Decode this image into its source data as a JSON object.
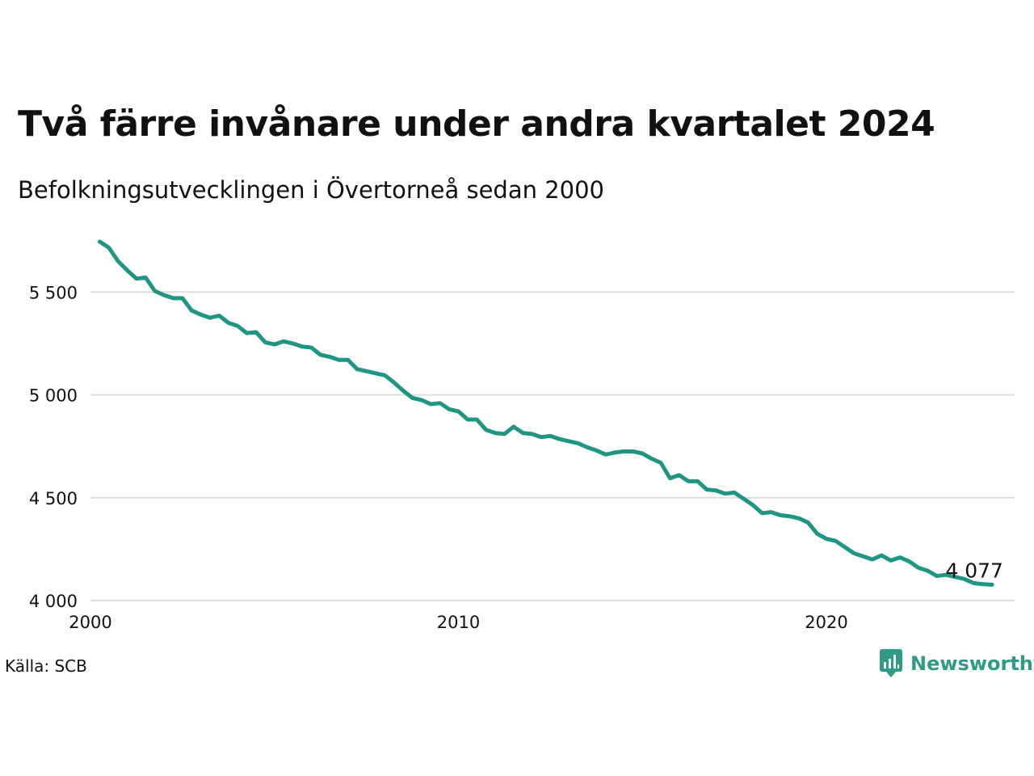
{
  "title": "Två färre invånare under andra kvartalet 2024",
  "subtitle": "Befolkningsutvecklingen i Övertorneå sedan 2000",
  "source": "Källa: SCB",
  "brand": {
    "name": "Newsworthy",
    "icon": "newsworthy-logo-icon",
    "color": "#2f9a88"
  },
  "chart_data": {
    "type": "line",
    "title": "Två färre invånare under andra kvartalet 2024",
    "subtitle": "Befolkningsutvecklingen i Övertorneå sedan 2000",
    "xlabel": "",
    "ylabel": "",
    "xlim": [
      2000,
      2025
    ],
    "ylim": [
      4000,
      5750
    ],
    "grid": true,
    "line_color": "#1f9583",
    "x_ticks": [
      {
        "value": 2000,
        "label": "2000"
      },
      {
        "value": 2010,
        "label": "2010"
      },
      {
        "value": 2020,
        "label": "2020"
      }
    ],
    "y_ticks": [
      {
        "value": 4000,
        "label": "4 000"
      },
      {
        "value": 4500,
        "label": "4 500"
      },
      {
        "value": 5000,
        "label": "5 000"
      },
      {
        "value": 5500,
        "label": "5 500"
      }
    ],
    "end_label": "4 077",
    "series": [
      {
        "x": [
          2000.25,
          2000.5,
          2000.75,
          2001.0,
          2001.25,
          2001.5,
          2001.75,
          2002.0,
          2002.25,
          2002.5,
          2002.75,
          2003.0,
          2003.25,
          2003.5,
          2003.75,
          2004.0,
          2004.25,
          2004.5,
          2004.75,
          2005.0,
          2005.25,
          2005.5,
          2005.75,
          2006.0,
          2006.25,
          2006.5,
          2006.75,
          2007.0,
          2007.25,
          2007.5,
          2007.75,
          2008.0,
          2008.25,
          2008.5,
          2008.75,
          2009.0,
          2009.25,
          2009.5,
          2009.75,
          2010.0,
          2010.25,
          2010.5,
          2010.75,
          2011.0,
          2011.25,
          2011.5,
          2011.75,
          2012.0,
          2012.25,
          2012.5,
          2012.75,
          2013.0,
          2013.25,
          2013.5,
          2013.75,
          2014.0,
          2014.25,
          2014.5,
          2014.75,
          2015.0,
          2015.25,
          2015.5,
          2015.75,
          2016.0,
          2016.25,
          2016.5,
          2016.75,
          2017.0,
          2017.25,
          2017.5,
          2017.75,
          2018.0,
          2018.25,
          2018.5,
          2018.75,
          2019.0,
          2019.25,
          2019.5,
          2019.75,
          2020.0,
          2020.25,
          2020.5,
          2020.75,
          2021.0,
          2021.25,
          2021.5,
          2021.75,
          2022.0,
          2022.25,
          2022.5,
          2022.75,
          2023.0,
          2023.25,
          2023.5,
          2023.75,
          2024.0,
          2024.25,
          2024.5
        ],
        "values": [
          5745,
          5715,
          5650,
          5605,
          5565,
          5570,
          5505,
          5485,
          5470,
          5470,
          5410,
          5390,
          5375,
          5385,
          5350,
          5335,
          5300,
          5305,
          5255,
          5245,
          5260,
          5250,
          5235,
          5230,
          5195,
          5185,
          5170,
          5170,
          5125,
          5115,
          5105,
          5095,
          5060,
          5020,
          4985,
          4975,
          4955,
          4960,
          4930,
          4920,
          4880,
          4880,
          4830,
          4815,
          4810,
          4845,
          4815,
          4810,
          4795,
          4800,
          4785,
          4775,
          4765,
          4745,
          4730,
          4710,
          4720,
          4725,
          4725,
          4715,
          4690,
          4670,
          4595,
          4610,
          4580,
          4580,
          4540,
          4535,
          4520,
          4525,
          4495,
          4465,
          4425,
          4430,
          4415,
          4410,
          4400,
          4380,
          4325,
          4300,
          4290,
          4260,
          4230,
          4215,
          4200,
          4220,
          4195,
          4210,
          4190,
          4160,
          4145,
          4120,
          4125,
          4115,
          4105,
          4085,
          4080,
          4077
        ]
      }
    ]
  }
}
